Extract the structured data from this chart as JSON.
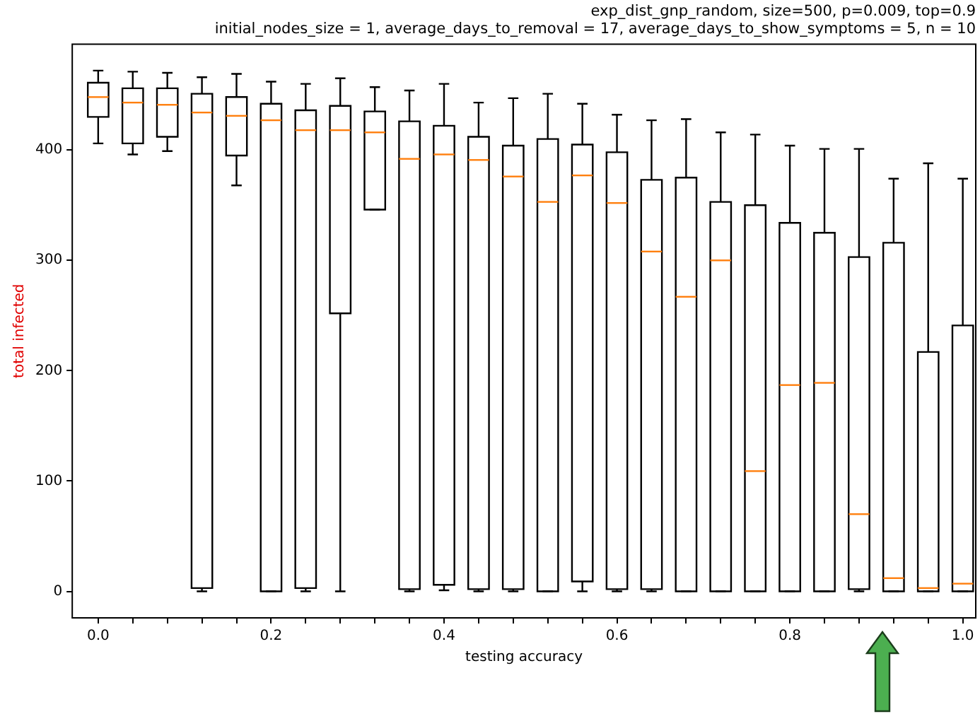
{
  "chart_data": {
    "type": "box",
    "title": "exp_dist_gnp_random, size=500, p=0.009, top=0.9",
    "subtitle": "initial_nodes_size = 1, average_days_to_removal = 17, average_days_to_show_symptoms = 5, n = 10",
    "xlabel": "testing accuracy",
    "ylabel": "total infected",
    "x": [
      0,
      0.04,
      0.08,
      0.12,
      0.16,
      0.2,
      0.24,
      0.28,
      0.32,
      0.36,
      0.4,
      0.44,
      0.48,
      0.52,
      0.56,
      0.6,
      0.64,
      0.68,
      0.72,
      0.76,
      0.8,
      0.84,
      0.88,
      0.92,
      0.96,
      1.0
    ],
    "boxes": [
      {
        "low": 406,
        "q1": 430,
        "median": 448,
        "q3": 461,
        "high": 472
      },
      {
        "low": 396,
        "q1": 406,
        "median": 443,
        "q3": 456,
        "high": 471
      },
      {
        "low": 399,
        "q1": 412,
        "median": 441,
        "q3": 456,
        "high": 470
      },
      {
        "low": 0,
        "q1": 3,
        "median": 434,
        "q3": 451,
        "high": 466
      },
      {
        "low": 368,
        "q1": 395,
        "median": 431,
        "q3": 448,
        "high": 469
      },
      {
        "low": 0,
        "q1": 0,
        "median": 427,
        "q3": 442,
        "high": 462
      },
      {
        "low": 0,
        "q1": 3,
        "median": 418,
        "q3": 436,
        "high": 460
      },
      {
        "low": 0,
        "q1": 252,
        "median": 418,
        "q3": 440,
        "high": 465
      },
      {
        "low": 346,
        "q1": 346,
        "median": 416,
        "q3": 435,
        "high": 457
      },
      {
        "low": 0,
        "q1": 2,
        "median": 392,
        "q3": 426,
        "high": 454
      },
      {
        "low": 1,
        "q1": 6,
        "median": 396,
        "q3": 422,
        "high": 460
      },
      {
        "low": 0,
        "q1": 2,
        "median": 391,
        "q3": 412,
        "high": 443
      },
      {
        "low": 0,
        "q1": 2,
        "median": 376,
        "q3": 404,
        "high": 447
      },
      {
        "low": 0,
        "q1": 0,
        "median": 353,
        "q3": 410,
        "high": 451
      },
      {
        "low": 0,
        "q1": 9,
        "median": 377,
        "q3": 405,
        "high": 442
      },
      {
        "low": 0,
        "q1": 2,
        "median": 352,
        "q3": 398,
        "high": 432
      },
      {
        "low": 0,
        "q1": 2,
        "median": 308,
        "q3": 373,
        "high": 427
      },
      {
        "low": 0,
        "q1": 0,
        "median": 267,
        "q3": 375,
        "high": 428
      },
      {
        "low": 0,
        "q1": 0,
        "median": 300,
        "q3": 353,
        "high": 416
      },
      {
        "low": 0,
        "q1": 0,
        "median": 109,
        "q3": 350,
        "high": 414
      },
      {
        "low": 0,
        "q1": 0,
        "median": 187,
        "q3": 334,
        "high": 404
      },
      {
        "low": 0,
        "q1": 0,
        "median": 189,
        "q3": 325,
        "high": 401
      },
      {
        "low": 0,
        "q1": 2,
        "median": 70,
        "q3": 303,
        "high": 401
      },
      {
        "low": 0,
        "q1": 0,
        "median": 12,
        "q3": 316,
        "high": 374
      },
      {
        "low": 0,
        "q1": 0,
        "median": 3,
        "q3": 217,
        "high": 388
      },
      {
        "low": 0,
        "q1": 0,
        "median": 7,
        "q3": 241,
        "high": 374
      }
    ],
    "xlim": [
      -0.03,
      1.015
    ],
    "ylim": [
      -24,
      496
    ],
    "xticks": [
      {
        "value": 0,
        "label": "0.0"
      },
      {
        "value": 0.04,
        "label": null
      },
      {
        "value": 0.08,
        "label": null
      },
      {
        "value": 0.12,
        "label": null
      },
      {
        "value": 0.16,
        "label": null
      },
      0.2,
      {
        "value": 0.24,
        "label": null
      },
      {
        "value": 0.28,
        "label": null
      },
      {
        "value": 0.32,
        "label": null
      },
      {
        "value": 0.36,
        "label": null
      },
      0.4,
      {
        "value": 0.44,
        "label": null
      },
      {
        "value": 0.48,
        "label": null
      },
      {
        "value": 0.52,
        "label": null
      },
      {
        "value": 0.56,
        "label": null
      },
      0.6,
      {
        "value": 0.64,
        "label": null
      },
      {
        "value": 0.68,
        "label": null
      },
      {
        "value": 0.72,
        "label": null
      },
      {
        "value": 0.76,
        "label": null
      },
      0.8,
      {
        "value": 0.84,
        "label": null
      },
      {
        "value": 0.88,
        "label": null
      },
      {
        "value": 0.92,
        "label": null
      },
      {
        "value": 0.96,
        "label": null
      },
      {
        "value": 1.0,
        "label": "1.0"
      }
    ],
    "yticks": [
      0,
      100,
      200,
      300,
      400
    ]
  }
}
